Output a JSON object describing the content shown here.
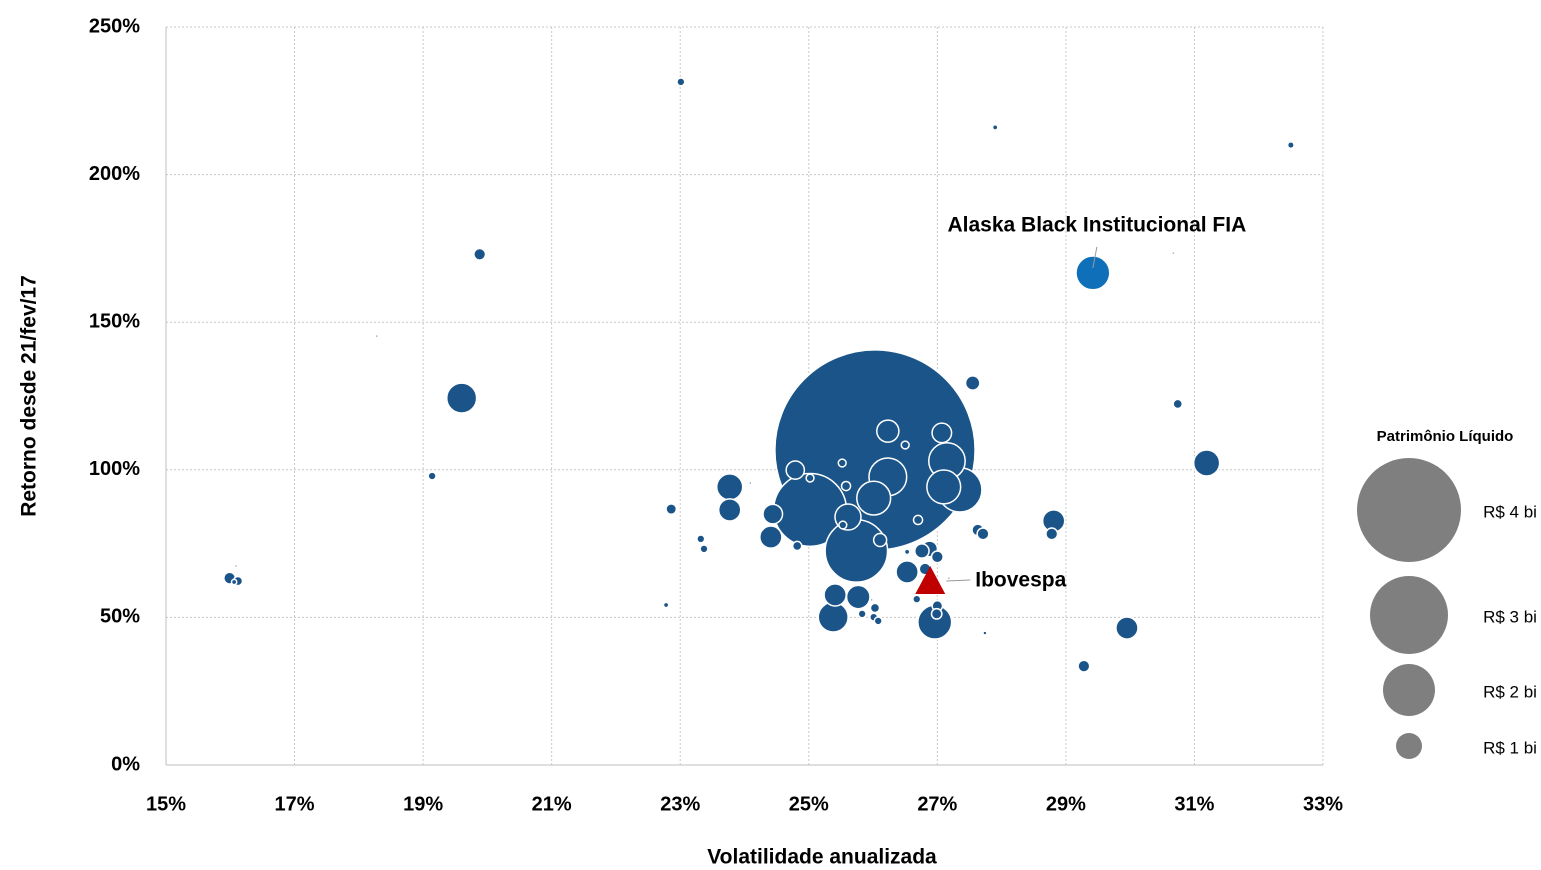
{
  "chart_data": {
    "type": "bubble",
    "xlabel": "Volatilidade anualizada",
    "ylabel": "Retorno desde 21/fev/17",
    "xlim": [
      15,
      33
    ],
    "xticks": [
      {
        "value": 15,
        "label": "15%"
      },
      {
        "value": 17,
        "label": "17%"
      },
      {
        "value": 19,
        "label": "19%"
      },
      {
        "value": 21,
        "label": "21%"
      },
      {
        "value": 23,
        "label": "23%"
      },
      {
        "value": 25,
        "label": "25%"
      },
      {
        "value": 27,
        "label": "27%"
      },
      {
        "value": 29,
        "label": "29%"
      },
      {
        "value": 31,
        "label": "31%"
      },
      {
        "value": 33,
        "label": "33%"
      }
    ],
    "ylim": [
      0,
      250
    ],
    "yticks": [
      {
        "value": 0,
        "label": "0%"
      },
      {
        "value": 50,
        "label": "50%"
      },
      {
        "value": 100,
        "label": "100%"
      },
      {
        "value": 150,
        "label": "150%"
      },
      {
        "value": 200,
        "label": "200%"
      },
      {
        "value": 250,
        "label": "250%"
      }
    ],
    "grid": true,
    "series": [
      {
        "color": "#1b5488",
        "x": [
          26.03,
          25.02,
          25.74,
          27.35,
          26.23,
          27.15,
          27.1,
          26.01,
          26.96,
          19.6,
          25.38,
          25.61,
          23.77,
          31.19,
          26.23,
          23.77,
          24.41,
          28.81,
          26.53,
          25.41,
          25.77,
          29.95,
          27.07,
          24.44,
          24.79,
          26.88,
          27.55,
          26.76,
          26.11,
          19.88,
          27.63,
          27.71,
          28.78,
          27.0,
          26.81,
          15.99,
          29.28,
          22.86,
          27.0,
          26.99,
          30.74,
          26.7,
          25.58,
          26.03,
          24.82,
          16.12,
          23.01,
          19.14,
          26.5,
          25.52,
          25.53,
          25.02,
          23.32,
          23.37,
          26.01,
          26.08,
          25.83,
          26.68,
          32.5,
          27.9,
          26.53,
          22.78,
          16.06,
          27.74,
          30.67,
          18.28,
          24.09,
          27.18,
          25.98,
          16.09
        ],
        "values": [
          106.7,
          86.4,
          72.5,
          93.2,
          97.6,
          103,
          94.2,
          90.4,
          48.4,
          124.3,
          50.1,
          84,
          94.2,
          102.3,
          113.1,
          86.4,
          77.2,
          82.7,
          65.4,
          57.6,
          56.9,
          46.4,
          112.5,
          85,
          99.9,
          73.2,
          129.4,
          72.5,
          76.2,
          173,
          79.6,
          78.3,
          78.3,
          70.5,
          66.4,
          63.3,
          33.5,
          86.7,
          53.9,
          51.2,
          122.3,
          83,
          94.5,
          53.2,
          74.2,
          62.3,
          231.4,
          97.9,
          108.4,
          102.3,
          81.3,
          97.2,
          76.6,
          73.2,
          50.1,
          48.8,
          51.2,
          56.2,
          210,
          216,
          72.2,
          54.2,
          62,
          44.7,
          173.4,
          145.3,
          95.5,
          63.3,
          55.9,
          67.4
        ],
        "sizes": [
          7.7,
          2.8,
          2.4,
          1.7,
          1.45,
          1.4,
          1.3,
          1.3,
          1.3,
          1.15,
          1.15,
          1.0,
          1.0,
          1.0,
          0.85,
          0.85,
          0.85,
          0.85,
          0.85,
          0.85,
          0.9,
          0.85,
          0.75,
          0.75,
          0.7,
          0.6,
          0.55,
          0.55,
          0.5,
          0.45,
          0.45,
          0.45,
          0.45,
          0.45,
          0.45,
          0.45,
          0.45,
          0.4,
          0.4,
          0.4,
          0.35,
          0.35,
          0.35,
          0.35,
          0.35,
          0.35,
          0.3,
          0.3,
          0.3,
          0.3,
          0.3,
          0.3,
          0.3,
          0.3,
          0.3,
          0.3,
          0.3,
          0.3,
          0.25,
          0.2,
          0.2,
          0.2,
          0.2,
          0.15,
          0.1,
          0.1,
          0.1,
          0.1,
          0.1,
          0.1
        ]
      },
      {
        "name": "Alaska Black Institucional FIA",
        "color": "#0f70b9",
        "x": [
          29.42
        ],
        "values": [
          166.7
        ],
        "sizes": [
          1.3
        ]
      },
      {
        "name": "Ibovespa",
        "marker": "triangle",
        "color": "#c00000",
        "x": [
          26.89
        ],
        "values": [
          62
        ]
      }
    ],
    "size_legend": {
      "title": "Patrimônio Líquido",
      "color": "#7f7f7f",
      "values": [
        4,
        3,
        2,
        1
      ],
      "labels": [
        "R$ 4 bi",
        "R$ 3 bi",
        "R$ 2 bi",
        "R$ 1 bi"
      ]
    }
  }
}
